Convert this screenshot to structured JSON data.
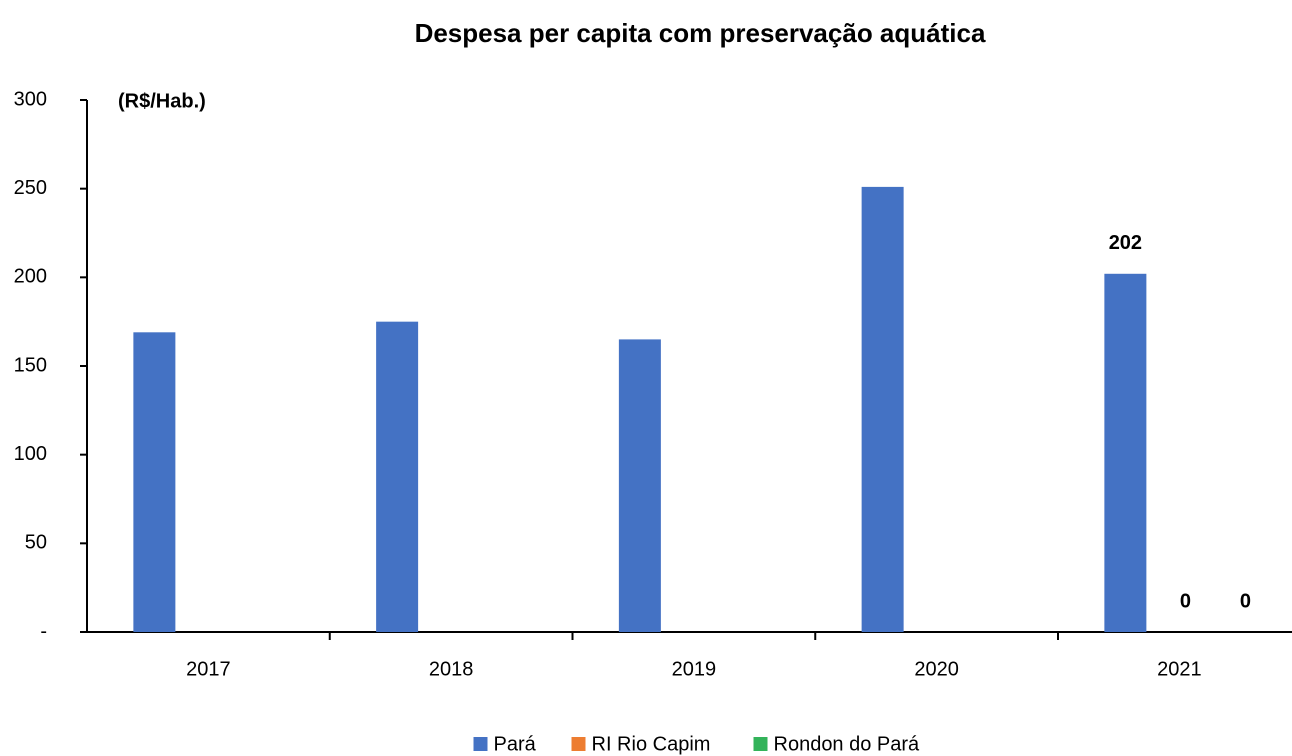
{
  "chart_data": {
    "type": "bar",
    "title": "Despesa per capita com preservação aquática",
    "y_label": "(R$/Hab.)",
    "categories": [
      "2017",
      "2018",
      "2019",
      "2020",
      "2021"
    ],
    "series": [
      {
        "name": "Pará",
        "color": "#4472c4",
        "values": [
          169,
          175,
          165,
          251,
          202
        ],
        "value_labels": [
          null,
          null,
          null,
          null,
          "202"
        ]
      },
      {
        "name": "RI Rio Capim",
        "color": "#ed7d31",
        "values": [
          0,
          0,
          0,
          0,
          0
        ],
        "value_labels": [
          null,
          null,
          null,
          null,
          "0"
        ]
      },
      {
        "name": "Rondon do Pará",
        "color": "#33b35a",
        "values": [
          0,
          0,
          0,
          0,
          0
        ],
        "value_labels": [
          null,
          null,
          null,
          null,
          "0"
        ]
      }
    ],
    "ylim": [
      0,
      300
    ],
    "yticks": [
      {
        "value": 0,
        "label": "-"
      },
      50,
      100,
      150,
      200,
      250,
      300
    ],
    "grid": false,
    "legend": "bottom"
  }
}
